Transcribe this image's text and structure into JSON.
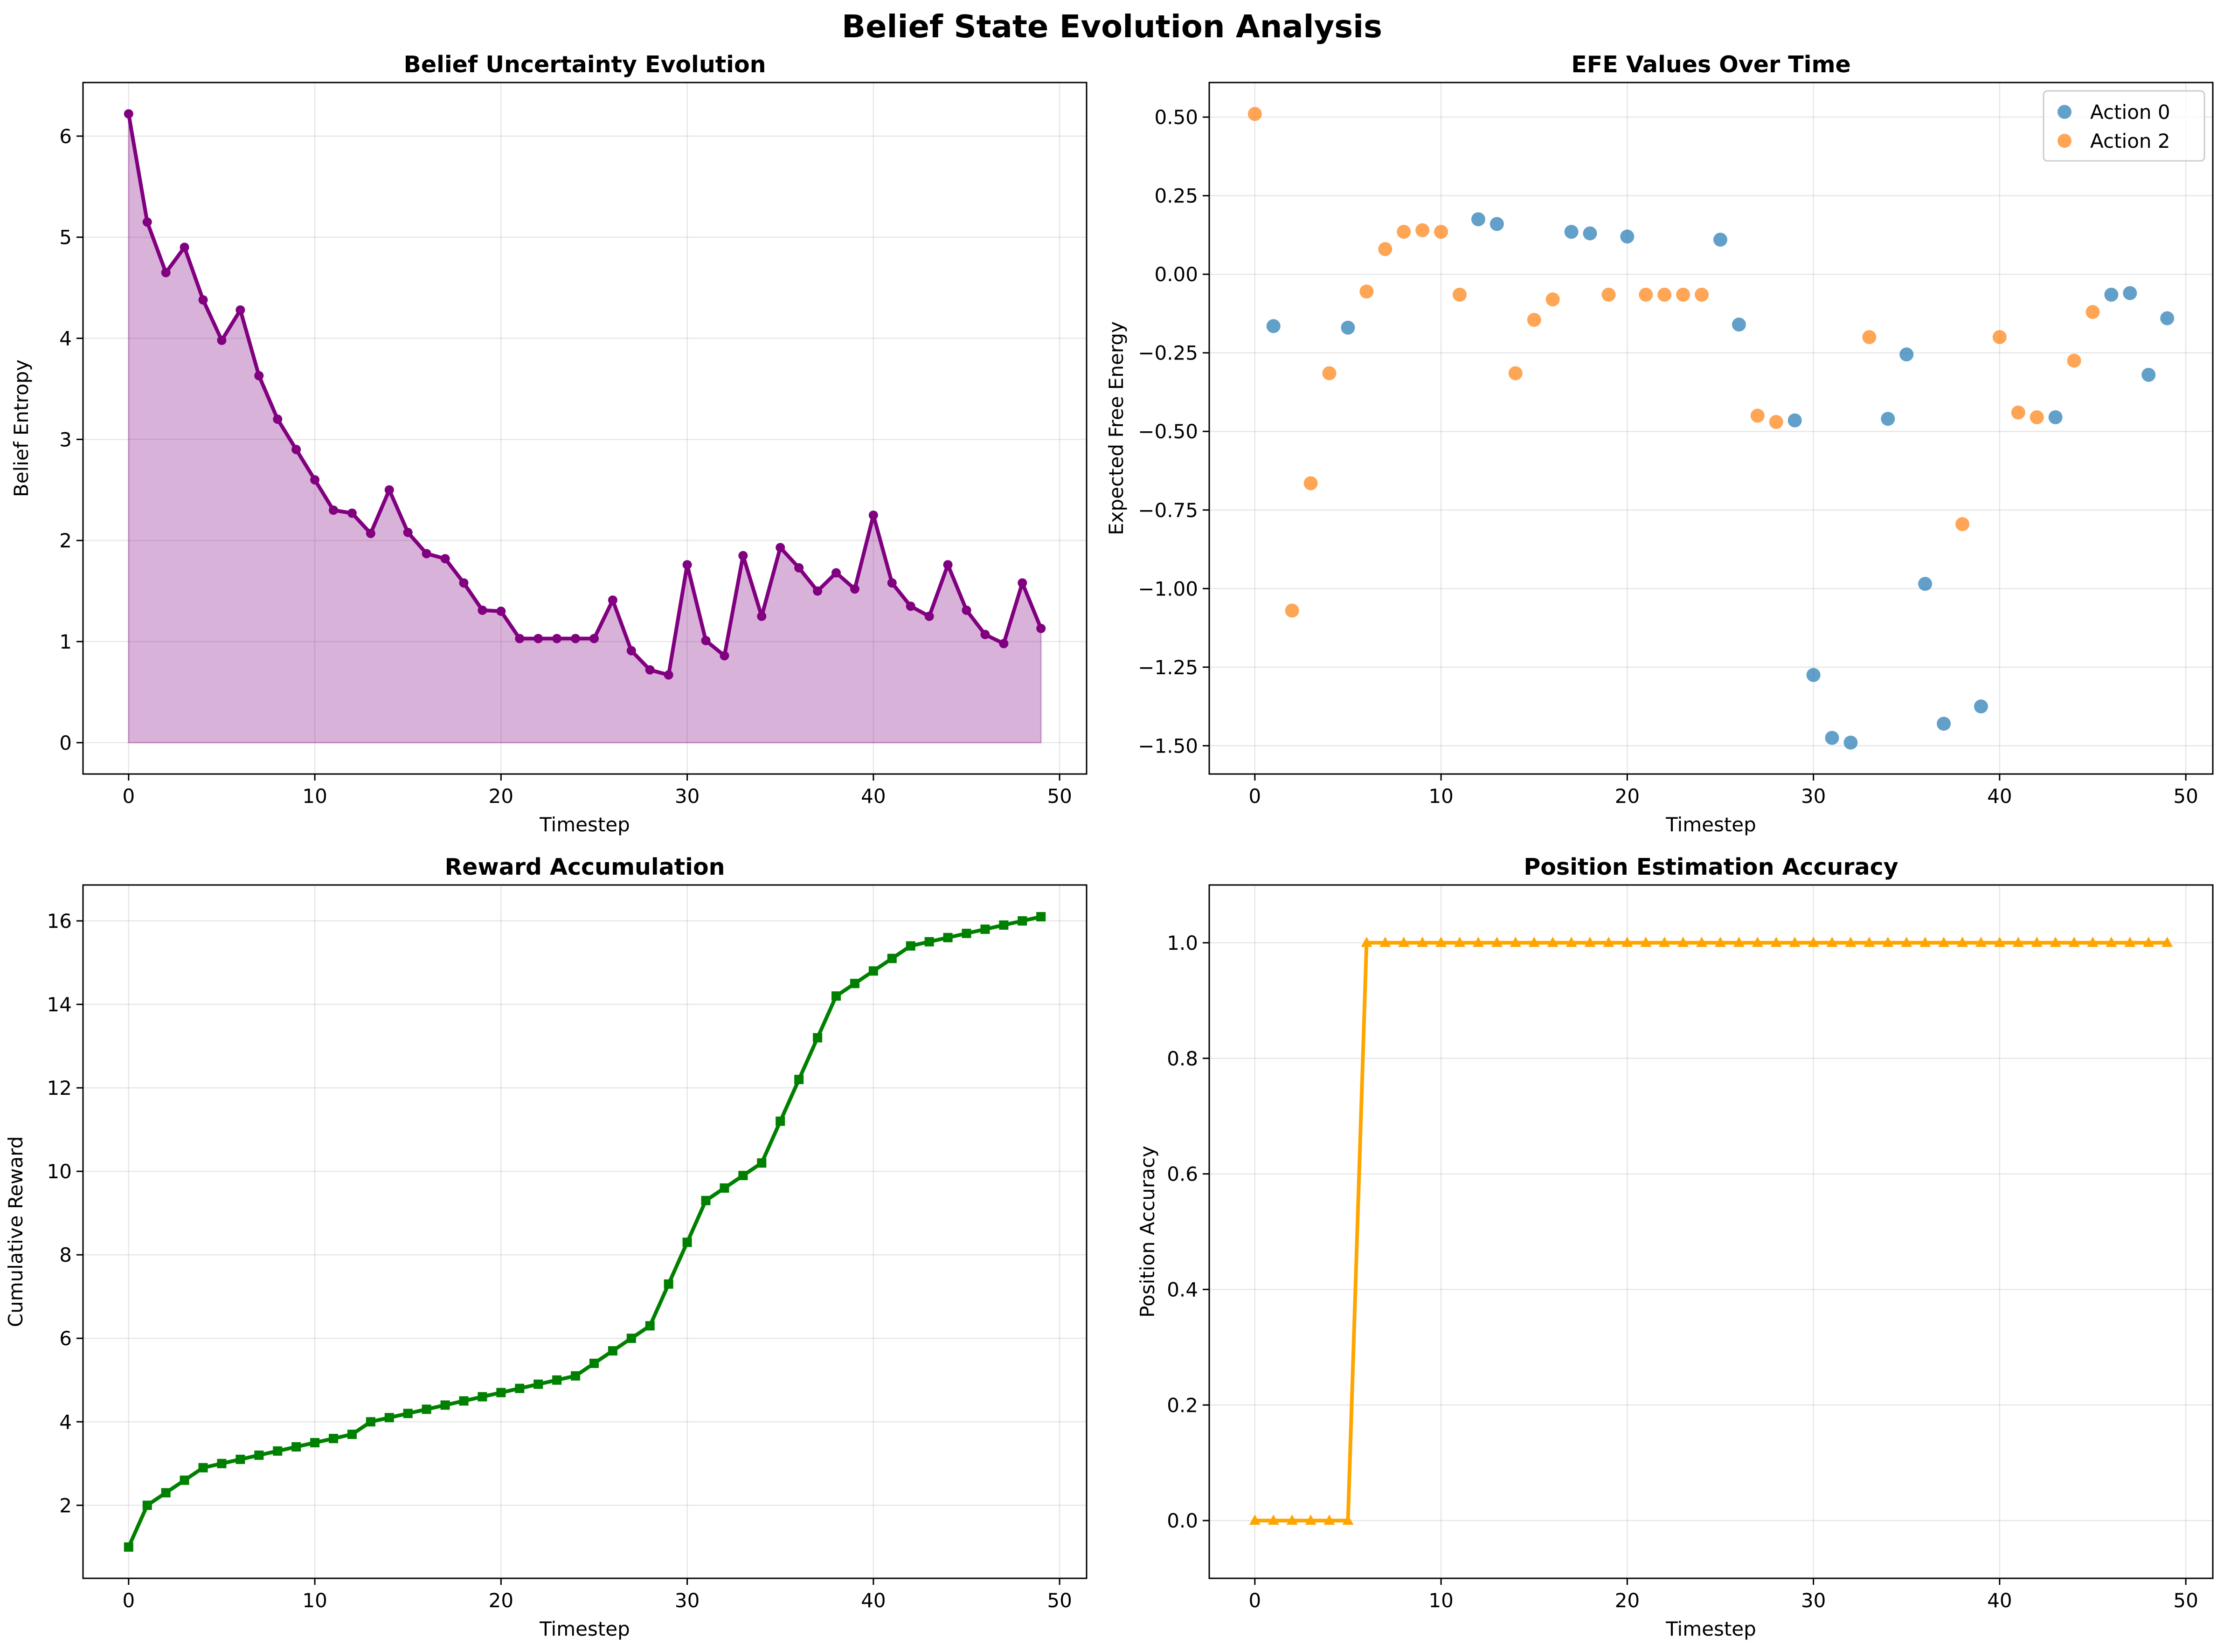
{
  "figure": {
    "title": "Belief State Evolution Analysis"
  },
  "chart_data": [
    {
      "id": "entropy",
      "type": "area",
      "title": "Belief Uncertainty Evolution",
      "xlabel": "Timestep",
      "ylabel": "Belief Entropy",
      "xlim": [
        -2.45,
        51.45
      ],
      "ylim": [
        -0.31,
        6.53
      ],
      "xticks": [
        0,
        10,
        20,
        30,
        40,
        50
      ],
      "yticks": [
        0,
        1,
        2,
        3,
        4,
        5,
        6
      ],
      "grid": true,
      "color": "#800080",
      "fill_color": "#D8B2D8",
      "x": [
        0,
        1,
        2,
        3,
        4,
        5,
        6,
        7,
        8,
        9,
        10,
        11,
        12,
        13,
        14,
        15,
        16,
        17,
        18,
        19,
        20,
        21,
        22,
        23,
        24,
        25,
        26,
        27,
        28,
        29,
        30,
        31,
        32,
        33,
        34,
        35,
        36,
        37,
        38,
        39,
        40,
        41,
        42,
        43,
        44,
        45,
        46,
        47,
        48,
        49
      ],
      "values": [
        6.22,
        5.15,
        4.65,
        4.9,
        4.38,
        3.98,
        4.28,
        3.63,
        3.2,
        2.9,
        2.6,
        2.3,
        2.27,
        2.07,
        2.5,
        2.08,
        1.87,
        1.82,
        1.58,
        1.31,
        1.3,
        1.03,
        1.03,
        1.03,
        1.03,
        1.03,
        1.41,
        0.91,
        0.72,
        0.67,
        1.76,
        1.01,
        0.86,
        1.85,
        1.25,
        1.93,
        1.73,
        1.5,
        1.68,
        1.52,
        2.25,
        1.58,
        1.35,
        1.25,
        1.76,
        1.31,
        1.07,
        0.98,
        1.58,
        1.13
      ]
    },
    {
      "id": "efe",
      "type": "scatter",
      "title": "EFE Values Over Time",
      "xlabel": "Timestep",
      "ylabel": "Expected Free Energy",
      "xlim": [
        -2.45,
        51.45
      ],
      "ylim": [
        -1.59,
        0.61
      ],
      "xticks": [
        0,
        10,
        20,
        30,
        40,
        50
      ],
      "yticks": [
        -1.5,
        -1.25,
        -1.0,
        -0.75,
        -0.5,
        -0.25,
        0.0,
        0.25,
        0.5
      ],
      "ytick_labels": [
        "−1.50",
        "−1.25",
        "−1.00",
        "−0.75",
        "−0.50",
        "−0.25",
        "0.00",
        "0.25",
        "0.50"
      ],
      "grid": true,
      "legend": "top-right",
      "series": [
        {
          "name": "Action 0",
          "color": "#1F77B4",
          "x": [
            1,
            5,
            12,
            13,
            17,
            18,
            20,
            25,
            26,
            29,
            30,
            31,
            32,
            34,
            35,
            36,
            37,
            39,
            43,
            46,
            47,
            48,
            49
          ],
          "values": [
            -0.165,
            -0.17,
            0.175,
            0.16,
            0.135,
            0.13,
            0.12,
            0.11,
            -0.16,
            -0.465,
            -1.275,
            -1.475,
            -1.49,
            -0.46,
            -0.255,
            -0.985,
            -1.43,
            -1.375,
            -0.455,
            -0.065,
            -0.06,
            -0.32,
            -0.14
          ]
        },
        {
          "name": "Action 2",
          "color": "#FF7F0E",
          "x": [
            0,
            2,
            3,
            4,
            6,
            7,
            8,
            9,
            10,
            11,
            14,
            15,
            16,
            19,
            21,
            22,
            23,
            24,
            27,
            28,
            33,
            38,
            40,
            41,
            42,
            44,
            45
          ],
          "values": [
            0.51,
            -1.07,
            -0.665,
            -0.315,
            -0.055,
            0.08,
            0.135,
            0.14,
            0.135,
            -0.065,
            -0.315,
            -0.145,
            -0.08,
            -0.065,
            -0.065,
            -0.065,
            -0.065,
            -0.065,
            -0.45,
            -0.47,
            -0.2,
            -0.795,
            -0.2,
            -0.44,
            -0.455,
            -0.275,
            -0.12
          ]
        }
      ]
    },
    {
      "id": "reward",
      "type": "line",
      "title": "Reward Accumulation",
      "xlabel": "Timestep",
      "ylabel": "Cumulative Reward",
      "xlim": [
        -2.45,
        51.45
      ],
      "ylim": [
        0.25,
        16.86
      ],
      "xticks": [
        0,
        10,
        20,
        30,
        40,
        50
      ],
      "yticks": [
        2,
        4,
        6,
        8,
        10,
        12,
        14,
        16
      ],
      "grid": true,
      "color": "#008000",
      "marker": "square",
      "x": [
        0,
        1,
        2,
        3,
        4,
        5,
        6,
        7,
        8,
        9,
        10,
        11,
        12,
        13,
        14,
        15,
        16,
        17,
        18,
        19,
        20,
        21,
        22,
        23,
        24,
        25,
        26,
        27,
        28,
        29,
        30,
        31,
        32,
        33,
        34,
        35,
        36,
        37,
        38,
        39,
        40,
        41,
        42,
        43,
        44,
        45,
        46,
        47,
        48,
        49
      ],
      "values": [
        1.0,
        2.0,
        2.3,
        2.6,
        2.9,
        3.0,
        3.1,
        3.2,
        3.3,
        3.4,
        3.5,
        3.6,
        3.7,
        4.0,
        4.1,
        4.2,
        4.3,
        4.4,
        4.5,
        4.6,
        4.7,
        4.8,
        4.9,
        5.0,
        5.1,
        5.4,
        5.7,
        6.0,
        6.3,
        7.3,
        8.3,
        9.3,
        9.6,
        9.9,
        10.2,
        11.2,
        12.2,
        13.2,
        14.2,
        14.5,
        14.8,
        15.1,
        15.4,
        15.5,
        15.6,
        15.7,
        15.8,
        15.9,
        16.0,
        16.1
      ]
    },
    {
      "id": "accuracy",
      "type": "line",
      "title": "Position Estimation Accuracy",
      "xlabel": "Timestep",
      "ylabel": "Position Accuracy",
      "xlim": [
        -2.45,
        51.45
      ],
      "ylim": [
        -0.1,
        1.1
      ],
      "xticks": [
        0,
        10,
        20,
        30,
        40,
        50
      ],
      "yticks": [
        0.0,
        0.2,
        0.4,
        0.6,
        0.8,
        1.0
      ],
      "ytick_labels": [
        "0.0",
        "0.2",
        "0.4",
        "0.6",
        "0.8",
        "1.0"
      ],
      "grid": true,
      "color": "#FFA500",
      "marker": "triangle",
      "x": [
        0,
        1,
        2,
        3,
        4,
        5,
        6,
        7,
        8,
        9,
        10,
        11,
        12,
        13,
        14,
        15,
        16,
        17,
        18,
        19,
        20,
        21,
        22,
        23,
        24,
        25,
        26,
        27,
        28,
        29,
        30,
        31,
        32,
        33,
        34,
        35,
        36,
        37,
        38,
        39,
        40,
        41,
        42,
        43,
        44,
        45,
        46,
        47,
        48,
        49
      ],
      "values": [
        0,
        0,
        0,
        0,
        0,
        0,
        1,
        1,
        1,
        1,
        1,
        1,
        1,
        1,
        1,
        1,
        1,
        1,
        1,
        1,
        1,
        1,
        1,
        1,
        1,
        1,
        1,
        1,
        1,
        1,
        1,
        1,
        1,
        1,
        1,
        1,
        1,
        1,
        1,
        1,
        1,
        1,
        1,
        1,
        1,
        1,
        1,
        1,
        1,
        1
      ]
    }
  ]
}
